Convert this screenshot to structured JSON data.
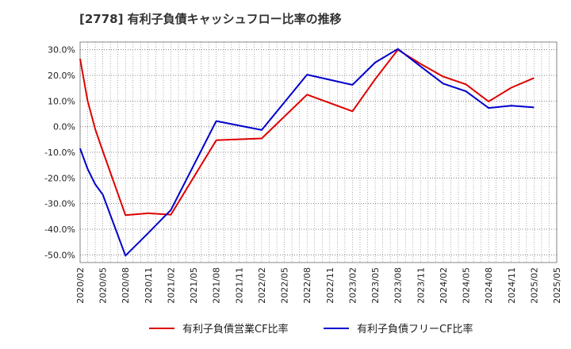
{
  "chart_data": {
    "type": "line",
    "title": "[2778]  有利子負債キャッシュフロー比率の推移",
    "xlabel": "",
    "ylabel": "",
    "ylim": [
      -53,
      33
    ],
    "y_ticks": [
      30,
      20,
      10,
      0,
      -10,
      -20,
      -30,
      -40,
      -50
    ],
    "y_tick_labels": [
      "30.0%",
      "20.0%",
      "10.0%",
      "0.0%",
      "-10.0%",
      "-20.0%",
      "-30.0%",
      "-40.0%",
      "-50.0%"
    ],
    "x_ticks": [
      "2020/02",
      "2020/05",
      "2020/08",
      "2020/11",
      "2021/02",
      "2021/05",
      "2021/08",
      "2021/11",
      "2022/02",
      "2022/05",
      "2022/08",
      "2022/11",
      "2023/02",
      "2023/05",
      "2023/08",
      "2023/11",
      "2024/02",
      "2024/05",
      "2024/08",
      "2024/11",
      "2025/02",
      "2025/05"
    ],
    "grid": true,
    "legend_position": "bottom",
    "series": [
      {
        "name": "有利子負債営業CF比率",
        "color": "#dd0000",
        "points": [
          [
            "2020/02",
            26.5
          ],
          [
            "2020/03",
            10.0
          ],
          [
            "2020/04",
            -1.0
          ],
          [
            "2020/05",
            -9.5
          ],
          [
            "2020/08",
            -34.5
          ],
          [
            "2020/11",
            -33.8
          ],
          [
            "2021/02",
            -34.3
          ],
          [
            "2021/08",
            -5.3
          ],
          [
            "2022/02",
            -4.6
          ],
          [
            "2022/08",
            12.5
          ],
          [
            "2023/02",
            6.0
          ],
          [
            "2023/05",
            18.5
          ],
          [
            "2023/08",
            30.0
          ],
          [
            "2023/11",
            24.5
          ],
          [
            "2024/02",
            19.5
          ],
          [
            "2024/05",
            16.5
          ],
          [
            "2024/08",
            9.8
          ],
          [
            "2024/11",
            15.2
          ],
          [
            "2025/02",
            19.0
          ]
        ]
      },
      {
        "name": "有利子負債フリーCF比率",
        "color": "#0000cc",
        "points": [
          [
            "2020/02",
            -8.5
          ],
          [
            "2020/03",
            -16.5
          ],
          [
            "2020/04",
            -22.5
          ],
          [
            "2020/05",
            -26.5
          ],
          [
            "2020/08",
            -50.3
          ],
          [
            "2020/11",
            -41.5
          ],
          [
            "2021/02",
            -32.5
          ],
          [
            "2021/08",
            2.2
          ],
          [
            "2022/02",
            -1.3
          ],
          [
            "2022/08",
            20.3
          ],
          [
            "2023/02",
            16.3
          ],
          [
            "2023/05",
            25.0
          ],
          [
            "2023/08",
            30.3
          ],
          [
            "2023/11",
            23.5
          ],
          [
            "2024/02",
            16.8
          ],
          [
            "2024/05",
            13.8
          ],
          [
            "2024/08",
            7.3
          ],
          [
            "2024/11",
            8.2
          ],
          [
            "2025/02",
            7.5
          ]
        ]
      }
    ]
  }
}
